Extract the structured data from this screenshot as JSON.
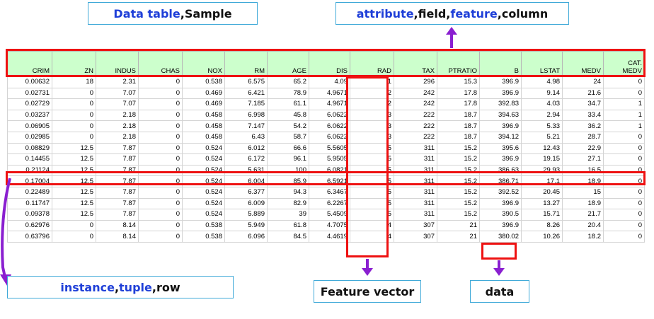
{
  "labels": {
    "data_table": {
      "kw": "Data table",
      "sep": ", ",
      "rest": "Sample"
    },
    "attribute": {
      "kw1": "attribute",
      "sep1": ", ",
      "plain1": "field",
      "sep2": ", ",
      "kw2": "feature",
      "sep3": ", ",
      "plain2": "column"
    },
    "instance": {
      "kw1": "instance",
      "sep1": ", ",
      "kw2": "tuple",
      "sep2": ", ",
      "plain": "row"
    },
    "feature_vector": "Feature vector",
    "data": "data"
  },
  "table": {
    "headers": [
      "CRIM",
      "ZN",
      "INDUS",
      "CHAS",
      "NOX",
      "RM",
      "AGE",
      "DIS",
      "RAD",
      "TAX",
      "PTRATIO",
      "B",
      "LSTAT",
      "MEDV",
      "CAT. MEDV"
    ],
    "rows": [
      [
        "0.00632",
        "18",
        "2.31",
        "0",
        "0.538",
        "6.575",
        "65.2",
        "4.09",
        "1",
        "296",
        "15.3",
        "396.9",
        "4.98",
        "24",
        "0"
      ],
      [
        "0.02731",
        "0",
        "7.07",
        "0",
        "0.469",
        "6.421",
        "78.9",
        "4.9671",
        "2",
        "242",
        "17.8",
        "396.9",
        "9.14",
        "21.6",
        "0"
      ],
      [
        "0.02729",
        "0",
        "7.07",
        "0",
        "0.469",
        "7.185",
        "61.1",
        "4.9671",
        "2",
        "242",
        "17.8",
        "392.83",
        "4.03",
        "34.7",
        "1"
      ],
      [
        "0.03237",
        "0",
        "2.18",
        "0",
        "0.458",
        "6.998",
        "45.8",
        "6.0622",
        "3",
        "222",
        "18.7",
        "394.63",
        "2.94",
        "33.4",
        "1"
      ],
      [
        "0.06905",
        "0",
        "2.18",
        "0",
        "0.458",
        "7.147",
        "54.2",
        "6.0622",
        "3",
        "222",
        "18.7",
        "396.9",
        "5.33",
        "36.2",
        "1"
      ],
      [
        "0.02985",
        "0",
        "2.18",
        "0",
        "0.458",
        "6.43",
        "58.7",
        "6.0622",
        "3",
        "222",
        "18.7",
        "394.12",
        "5.21",
        "28.7",
        "0"
      ],
      [
        "0.08829",
        "12.5",
        "7.87",
        "0",
        "0.524",
        "6.012",
        "66.6",
        "5.5605",
        "5",
        "311",
        "15.2",
        "395.6",
        "12.43",
        "22.9",
        "0"
      ],
      [
        "0.14455",
        "12.5",
        "7.87",
        "0",
        "0.524",
        "6.172",
        "96.1",
        "5.9505",
        "5",
        "311",
        "15.2",
        "396.9",
        "19.15",
        "27.1",
        "0"
      ],
      [
        "0.21124",
        "12.5",
        "7.87",
        "0",
        "0.524",
        "5.631",
        "100",
        "6.0821",
        "5",
        "311",
        "15.2",
        "386.63",
        "29.93",
        "16.5",
        "0"
      ],
      [
        "0.17004",
        "12.5",
        "7.87",
        "0",
        "0.524",
        "6.004",
        "85.9",
        "6.5921",
        "5",
        "311",
        "15.2",
        "386.71",
        "17.1",
        "18.9",
        "0"
      ],
      [
        "0.22489",
        "12.5",
        "7.87",
        "0",
        "0.524",
        "6.377",
        "94.3",
        "6.3467",
        "5",
        "311",
        "15.2",
        "392.52",
        "20.45",
        "15",
        "0"
      ],
      [
        "0.11747",
        "12.5",
        "7.87",
        "0",
        "0.524",
        "6.009",
        "82.9",
        "6.2267",
        "5",
        "311",
        "15.2",
        "396.9",
        "13.27",
        "18.9",
        "0"
      ],
      [
        "0.09378",
        "12.5",
        "7.87",
        "0",
        "0.524",
        "5.889",
        "39",
        "5.4509",
        "5",
        "311",
        "15.2",
        "390.5",
        "15.71",
        "21.7",
        "0"
      ],
      [
        "0.62976",
        "0",
        "8.14",
        "0",
        "0.538",
        "5.949",
        "61.8",
        "4.7075",
        "4",
        "307",
        "21",
        "396.9",
        "8.26",
        "20.4",
        "0"
      ],
      [
        "0.63796",
        "0",
        "8.14",
        "0",
        "0.538",
        "6.096",
        "84.5",
        "4.4619",
        "4",
        "307",
        "21",
        "380.02",
        "10.26",
        "18.2",
        "0"
      ]
    ]
  },
  "colors": {
    "header_bg": "#ccffcc",
    "highlight": "#ee1111",
    "arrow": "#8a1fd0",
    "keyword": "#1f3fd8",
    "callout_border": "#3fa9d8"
  }
}
